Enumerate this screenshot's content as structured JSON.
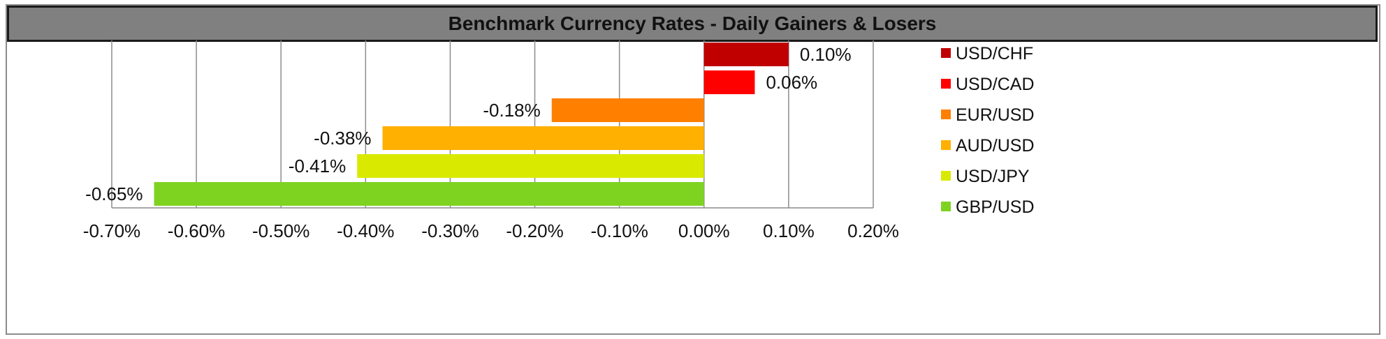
{
  "title": "Benchmark Currency Rates - Daily Gainers & Losers",
  "chart_data": {
    "type": "bar",
    "orientation": "horizontal",
    "title": "Benchmark Currency Rates - Daily Gainers & Losers",
    "xlabel": "",
    "ylabel": "",
    "xlim": [
      -0.7,
      0.2
    ],
    "x_ticks": [
      -0.7,
      -0.6,
      -0.5,
      -0.4,
      -0.3,
      -0.2,
      -0.1,
      0.0,
      0.1,
      0.2
    ],
    "x_tick_labels": [
      "-0.70%",
      "-0.60%",
      "-0.50%",
      "-0.40%",
      "-0.30%",
      "-0.20%",
      "-0.10%",
      "0.00%",
      "0.10%",
      "0.20%"
    ],
    "grid": "vertical",
    "legend_position": "right",
    "series": [
      {
        "name": "USD/CHF",
        "value": 0.1,
        "label": "0.10%",
        "color": "#c00000"
      },
      {
        "name": "USD/CAD",
        "value": 0.06,
        "label": "0.06%",
        "color": "#ff0000"
      },
      {
        "name": "EUR/USD",
        "value": -0.18,
        "label": "-0.18%",
        "color": "#ff7f00"
      },
      {
        "name": "AUD/USD",
        "value": -0.38,
        "label": "-0.38%",
        "color": "#ffb000"
      },
      {
        "name": "USD/JPY",
        "value": -0.41,
        "label": "-0.41%",
        "color": "#d9ea00"
      },
      {
        "name": "GBP/USD",
        "value": -0.65,
        "label": "-0.65%",
        "color": "#7ed321"
      }
    ]
  }
}
